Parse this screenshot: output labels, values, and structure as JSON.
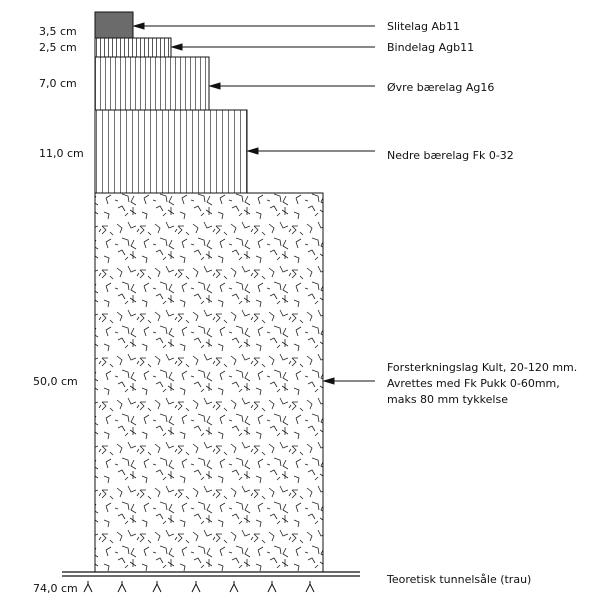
{
  "layers": [
    {
      "id": "slitelag",
      "thickness": "3,5 cm",
      "label": [
        "Slitelag Ab11"
      ]
    },
    {
      "id": "bindelag",
      "thickness": "2,5 cm",
      "label": [
        "Bindelag Agb11"
      ]
    },
    {
      "id": "ovre-baerelag",
      "thickness": "7,0 cm",
      "label": [
        "Øvre bærelag Ag16"
      ]
    },
    {
      "id": "nedre-baerelag",
      "thickness": "11,0 cm",
      "label": [
        "Nedre bærelag Fk 0-32"
      ]
    },
    {
      "id": "forsterkningslag",
      "thickness": "50,0 cm",
      "label": [
        "Forsterkningslag Kult, 20-120 mm.",
        "Avrettes med Fk Pukk 0-60mm,",
        "maks 80 mm tykkelse"
      ]
    }
  ],
  "base": {
    "thickness": "74,0 cm",
    "label": "Teoretisk tunnelsåle (trau)"
  },
  "colors": {
    "line": "#111111",
    "asphalt_fill": "#6b6b6b"
  }
}
